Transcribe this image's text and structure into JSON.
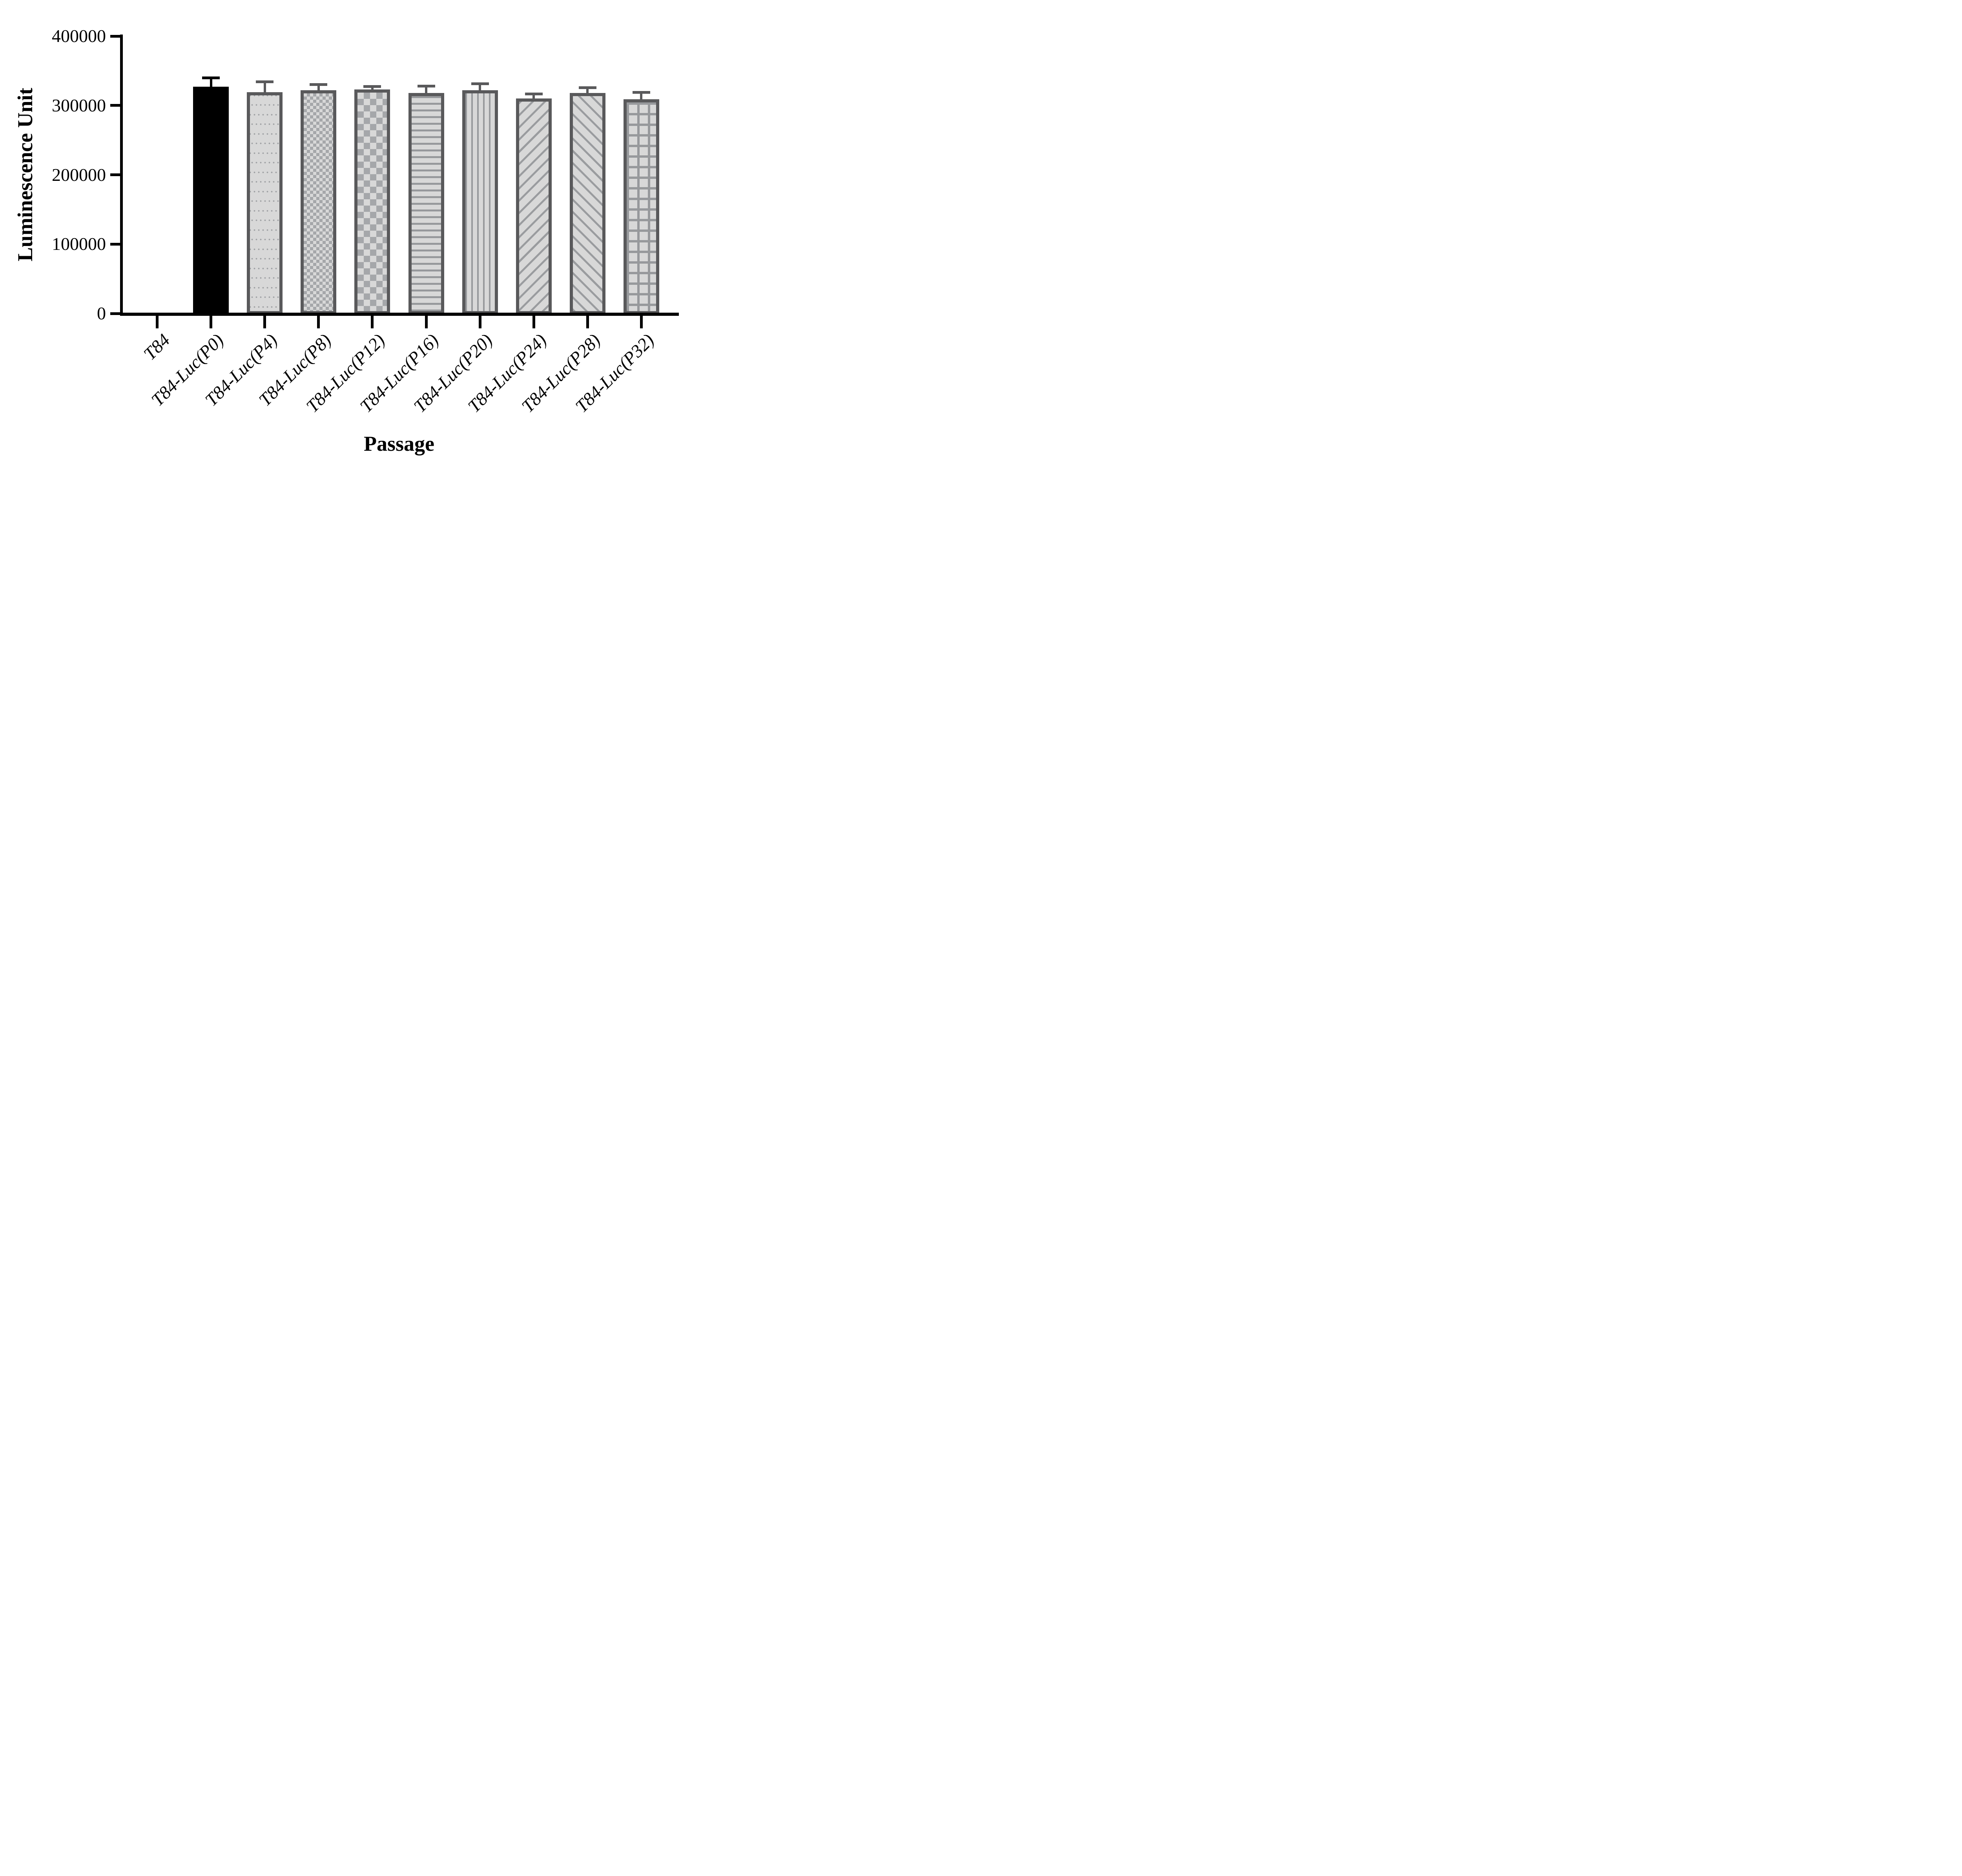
{
  "chart_data": {
    "type": "bar",
    "title": "",
    "xlabel": "Passage",
    "ylabel": "Luminescence Unit",
    "ylim": [
      0,
      400000
    ],
    "yticks": [
      0,
      100000,
      200000,
      300000,
      400000
    ],
    "ytick_labels": [
      "0",
      "100000",
      "200000",
      "300000",
      "400000"
    ],
    "grid": false,
    "legend_position": "none",
    "categories": [
      "T84",
      "T84-Luc(P0)",
      "T84-Luc(P4)",
      "T84-Luc(P8)",
      "T84-Luc(P12)",
      "T84-Luc(P16)",
      "T84-Luc(P20)",
      "T84-Luc(P24)",
      "T84-Luc(P28)",
      "T84-Luc(P32)"
    ],
    "values": [
      0,
      327000,
      319000,
      322000,
      323000,
      318000,
      322000,
      310000,
      318000,
      309000
    ],
    "errors_sd_upper": [
      0,
      11000,
      13000,
      6000,
      2500,
      8000,
      7500,
      4500,
      5500,
      8000
    ],
    "patterns": [
      "none",
      "solid-black",
      "dots",
      "checker-fine",
      "checker-coarse",
      "hlines",
      "vlines",
      "diag-up",
      "diag-down",
      "grid"
    ],
    "colors": {
      "black_bar": "#000000",
      "pattern_border": "#59595b",
      "pattern_fill": "#d8d8d8",
      "pattern_ink": "#a0a2a5",
      "axis": "#000000"
    }
  }
}
